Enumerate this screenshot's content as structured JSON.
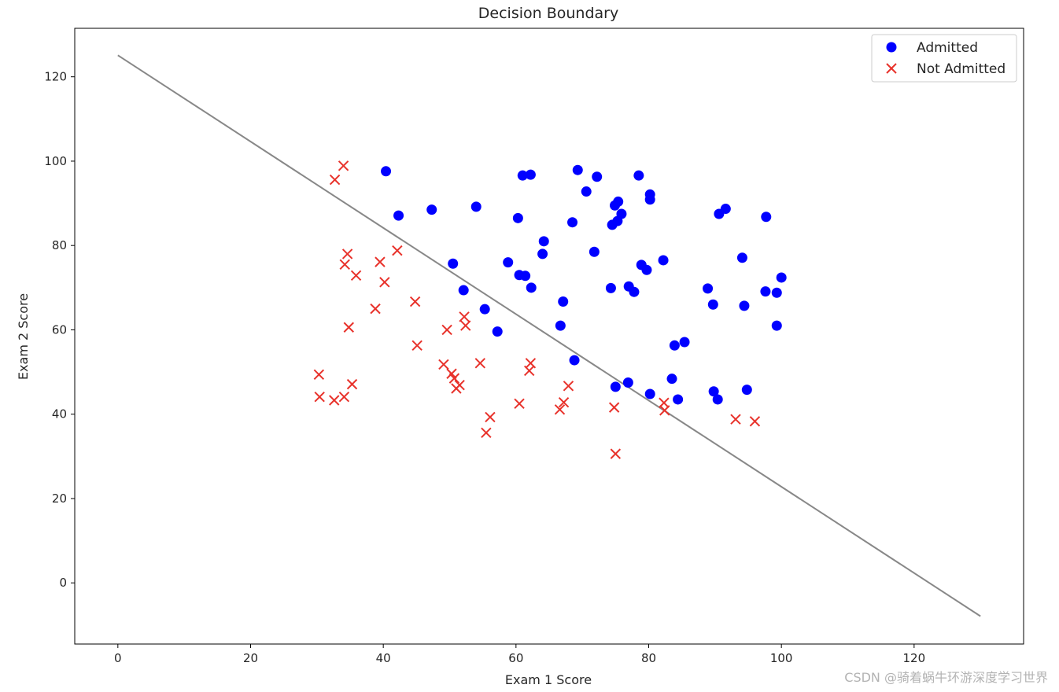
{
  "chart_data": {
    "type": "scatter",
    "title": "Decision Boundary",
    "xlabel": "Exam 1 Score",
    "ylabel": "Exam 2 Score",
    "xlim": [
      -6.5,
      136.5
    ],
    "ylim": [
      -14.5,
      131.5
    ],
    "xticks": [
      0,
      20,
      40,
      60,
      80,
      100,
      120
    ],
    "yticks": [
      0,
      20,
      40,
      60,
      80,
      100,
      120
    ],
    "legend_position": "top-right",
    "colors": {
      "admitted": "#0000ff",
      "not_admitted": "#e8322b",
      "boundary": "#888888"
    },
    "series": [
      {
        "name": "Admitted",
        "marker": "circle",
        "points": [
          [
            40.4,
            97.6
          ],
          [
            42.3,
            87.1
          ],
          [
            47.3,
            88.5
          ],
          [
            54.0,
            89.2
          ],
          [
            60.3,
            86.5
          ],
          [
            61.0,
            96.6
          ],
          [
            62.2,
            96.8
          ],
          [
            69.3,
            97.9
          ],
          [
            72.2,
            96.3
          ],
          [
            78.5,
            96.6
          ],
          [
            70.6,
            92.8
          ],
          [
            75.4,
            90.4
          ],
          [
            74.9,
            89.5
          ],
          [
            75.9,
            87.5
          ],
          [
            75.3,
            85.8
          ],
          [
            74.5,
            84.9
          ],
          [
            80.2,
            92.1
          ],
          [
            80.2,
            90.9
          ],
          [
            68.5,
            85.5
          ],
          [
            64.2,
            81.0
          ],
          [
            64.0,
            78.0
          ],
          [
            71.8,
            78.5
          ],
          [
            58.8,
            76.0
          ],
          [
            50.5,
            75.7
          ],
          [
            60.5,
            73.0
          ],
          [
            61.4,
            72.8
          ],
          [
            62.3,
            70.0
          ],
          [
            52.1,
            69.4
          ],
          [
            67.1,
            66.7
          ],
          [
            55.3,
            64.9
          ],
          [
            66.7,
            61.0
          ],
          [
            57.2,
            59.6
          ],
          [
            68.8,
            52.8
          ],
          [
            74.3,
            69.9
          ],
          [
            77.0,
            70.3
          ],
          [
            77.8,
            69.0
          ],
          [
            78.9,
            75.4
          ],
          [
            79.7,
            74.2
          ],
          [
            82.2,
            76.5
          ],
          [
            88.9,
            69.8
          ],
          [
            89.7,
            66.0
          ],
          [
            94.1,
            77.1
          ],
          [
            94.4,
            65.7
          ],
          [
            97.6,
            69.1
          ],
          [
            99.3,
            68.8
          ],
          [
            100.0,
            72.4
          ],
          [
            99.3,
            61.0
          ],
          [
            90.6,
            87.5
          ],
          [
            91.6,
            88.7
          ],
          [
            97.7,
            86.8
          ],
          [
            83.9,
            56.3
          ],
          [
            85.4,
            57.1
          ],
          [
            83.5,
            48.4
          ],
          [
            84.4,
            43.5
          ],
          [
            80.2,
            44.8
          ],
          [
            76.9,
            47.5
          ],
          [
            75.0,
            46.5
          ],
          [
            89.8,
            45.4
          ],
          [
            90.4,
            43.5
          ],
          [
            94.8,
            45.8
          ]
        ]
      },
      {
        "name": "Not Admitted",
        "marker": "x",
        "points": [
          [
            34.6,
            78.0
          ],
          [
            34.2,
            75.5
          ],
          [
            35.9,
            72.9
          ],
          [
            39.5,
            76.1
          ],
          [
            40.2,
            71.3
          ],
          [
            42.1,
            78.8
          ],
          [
            44.8,
            66.7
          ],
          [
            38.8,
            65.0
          ],
          [
            34.8,
            60.6
          ],
          [
            45.1,
            56.3
          ],
          [
            49.6,
            60.0
          ],
          [
            52.2,
            63.1
          ],
          [
            52.4,
            61.0
          ],
          [
            30.3,
            49.4
          ],
          [
            30.4,
            44.1
          ],
          [
            32.6,
            43.3
          ],
          [
            34.1,
            44.1
          ],
          [
            35.3,
            47.1
          ],
          [
            49.1,
            51.8
          ],
          [
            50.3,
            49.6
          ],
          [
            50.7,
            48.5
          ],
          [
            51.0,
            46.1
          ],
          [
            51.5,
            46.9
          ],
          [
            54.6,
            52.1
          ],
          [
            56.1,
            39.3
          ],
          [
            55.5,
            35.6
          ],
          [
            60.5,
            42.5
          ],
          [
            62.0,
            50.3
          ],
          [
            62.2,
            52.1
          ],
          [
            66.6,
            41.1
          ],
          [
            67.2,
            42.8
          ],
          [
            67.9,
            46.7
          ],
          [
            74.8,
            41.6
          ],
          [
            75.0,
            30.6
          ],
          [
            82.3,
            42.7
          ],
          [
            82.4,
            40.9
          ],
          [
            93.1,
            38.8
          ],
          [
            96.0,
            38.3
          ],
          [
            32.7,
            95.6
          ],
          [
            34.0,
            98.9
          ]
        ]
      }
    ],
    "line": {
      "name": "decision boundary",
      "x": [
        0,
        130
      ],
      "y": [
        125.1,
        -7.9
      ]
    }
  },
  "watermark": "CSDN @骑着蜗牛环游深度学习世界"
}
